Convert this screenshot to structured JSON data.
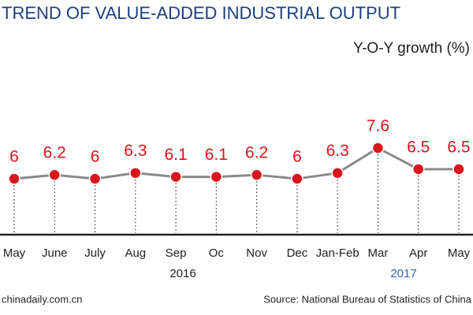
{
  "chart_data": {
    "type": "line",
    "title": "TREND OF VALUE-ADDED INDUSTRIAL OUTPUT",
    "subtitle": "Y-O-Y growth (%)",
    "categories": [
      "May",
      "June",
      "July",
      "Aug",
      "Sep",
      "Oc",
      "Nov",
      "Dec",
      "Jan-Feb",
      "Mar",
      "Apr",
      "May"
    ],
    "values": [
      6,
      6.2,
      6,
      6.3,
      6.1,
      6.1,
      6.2,
      6,
      6.3,
      7.6,
      6.5,
      6.5
    ],
    "line_color": "#8a8a8a",
    "marker_color": "#d9161c",
    "groups": [
      "2016",
      "2017"
    ],
    "footer_left": "chinadaily.com.cn",
    "source": "Source: National Bureau of Statistics of China"
  }
}
